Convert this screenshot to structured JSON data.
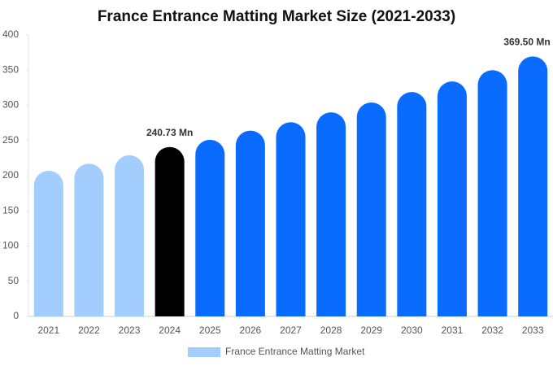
{
  "chart_data": {
    "type": "bar",
    "title": "France Entrance Matting Market Size (2021-2033)",
    "categories": [
      "2021",
      "2022",
      "2023",
      "2024",
      "2025",
      "2026",
      "2027",
      "2028",
      "2029",
      "2030",
      "2031",
      "2032",
      "2033"
    ],
    "series": [
      {
        "name": "France Entrance Matting Market",
        "color": "#a3cdfd",
        "values": [
          207,
          217,
          229,
          240.73,
          251,
          264,
          276,
          290,
          304,
          319,
          334,
          350,
          369.5
        ],
        "value_labels": [
          null,
          null,
          null,
          "240.73 Mn",
          null,
          null,
          null,
          null,
          null,
          null,
          null,
          null,
          "369.50 Mn"
        ],
        "colors": [
          "#a3cdfd",
          "#a3cdfd",
          "#a3cdfd",
          "#000000",
          "#0a6cff",
          "#0a6cff",
          "#0a6cff",
          "#0a6cff",
          "#0a6cff",
          "#0a6cff",
          "#0a6cff",
          "#0a6cff",
          "#0a6cff"
        ]
      }
    ],
    "ylim": [
      0,
      400
    ],
    "yticks": [
      0,
      50,
      100,
      150,
      200,
      250,
      300,
      350,
      400
    ],
    "grid": false,
    "legend": "bottom"
  }
}
